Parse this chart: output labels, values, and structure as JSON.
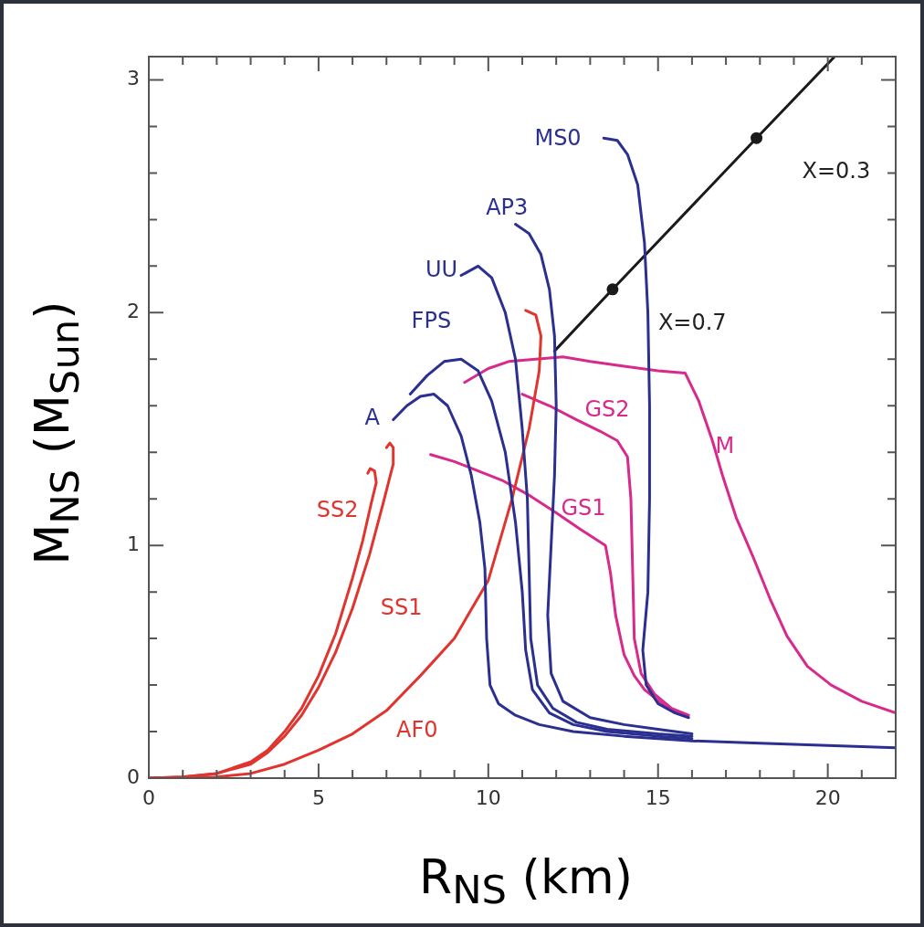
{
  "chart_data": {
    "type": "line",
    "xlabel": "R$_{NS}$ (km)",
    "ylabel": "M$_{NS}$ (M$_{Sun}$)",
    "xlim": [
      0,
      22
    ],
    "ylim": [
      0,
      3.1
    ],
    "xticks": [
      0,
      {
        "value": 1,
        "label": null
      },
      {
        "value": 2,
        "label": null
      },
      {
        "value": 3,
        "label": null
      },
      {
        "value": 4,
        "label": null
      },
      5,
      {
        "value": 6,
        "label": null
      },
      {
        "value": 7,
        "label": null
      },
      {
        "value": 8,
        "label": null
      },
      {
        "value": 9,
        "label": null
      },
      10,
      {
        "value": 11,
        "label": null
      },
      {
        "value": 12,
        "label": null
      },
      {
        "value": 13,
        "label": null
      },
      {
        "value": 14,
        "label": null
      },
      15,
      {
        "value": 16,
        "label": null
      },
      {
        "value": 17,
        "label": null
      },
      {
        "value": 18,
        "label": null
      },
      {
        "value": 19,
        "label": null
      },
      20,
      {
        "value": 21,
        "label": null
      }
    ],
    "yticks": [
      0,
      {
        "value": 0.2,
        "label": null
      },
      {
        "value": 0.4,
        "label": null
      },
      {
        "value": 0.6,
        "label": null
      },
      {
        "value": 0.8,
        "label": null
      },
      1,
      {
        "value": 1.2,
        "label": null
      },
      {
        "value": 1.4,
        "label": null
      },
      {
        "value": 1.6,
        "label": null
      },
      {
        "value": 1.8,
        "label": null
      },
      2,
      {
        "value": 2.2,
        "label": null
      },
      {
        "value": 2.4,
        "label": null
      },
      {
        "value": 2.6,
        "label": null
      },
      {
        "value": 2.8,
        "label": null
      },
      3
    ],
    "grid": false,
    "legend": false,
    "marker": "none",
    "line_style": "solid",
    "annotations": [
      {
        "text": "X=0.3",
        "x": 17.9,
        "y": 2.75
      },
      {
        "text": "X=0.7",
        "x": 13.66,
        "y": 2.1
      }
    ],
    "series": [
      {
        "name": "A",
        "color": "#2b3090",
        "x": [
          7.2,
          7.6,
          8.0,
          8.4,
          8.8,
          9.2,
          9.5,
          9.75,
          9.9,
          9.95,
          10.05,
          10.3,
          10.8,
          11.5,
          12.5,
          14,
          16,
          18,
          20,
          22
        ],
        "values": [
          1.54,
          1.6,
          1.64,
          1.65,
          1.6,
          1.47,
          1.3,
          1.1,
          0.9,
          0.6,
          0.4,
          0.32,
          0.27,
          0.23,
          0.2,
          0.18,
          0.16,
          0.15,
          0.14,
          0.13
        ]
      },
      {
        "name": "FPS",
        "color": "#2b3090",
        "x": [
          7.7,
          8.2,
          8.7,
          9.2,
          9.7,
          10.1,
          10.5,
          10.8,
          11.0,
          11.1,
          11.3,
          11.8,
          12.5,
          13.5,
          15,
          16
        ],
        "values": [
          1.65,
          1.73,
          1.79,
          1.8,
          1.75,
          1.62,
          1.4,
          1.1,
          0.8,
          0.55,
          0.38,
          0.28,
          0.23,
          0.2,
          0.18,
          0.17
        ]
      },
      {
        "name": "UU",
        "color": "#2b3090",
        "x": [
          9.2,
          9.7,
          10.1,
          10.5,
          10.8,
          11.0,
          11.15,
          11.2,
          11.25,
          11.45,
          11.9,
          12.6,
          13.5,
          15,
          16
        ],
        "values": [
          2.16,
          2.2,
          2.15,
          2.0,
          1.8,
          1.5,
          1.2,
          0.9,
          0.6,
          0.4,
          0.3,
          0.24,
          0.21,
          0.19,
          0.18
        ]
      },
      {
        "name": "AP3",
        "color": "#2b3090",
        "x": [
          10.8,
          11.2,
          11.55,
          11.8,
          11.95,
          12.0,
          11.95,
          11.85,
          11.75,
          11.85,
          12.2,
          13,
          14,
          15,
          16
        ],
        "values": [
          2.38,
          2.34,
          2.25,
          2.1,
          1.9,
          1.6,
          1.3,
          1.0,
          0.7,
          0.45,
          0.33,
          0.26,
          0.23,
          0.21,
          0.19
        ]
      },
      {
        "name": "MS0",
        "color": "#2b3090",
        "x": [
          13.4,
          13.8,
          14.1,
          14.4,
          14.6,
          14.7,
          14.75,
          14.75,
          14.7,
          14.55,
          14.65,
          15.0,
          15.5,
          15.9
        ],
        "values": [
          2.75,
          2.74,
          2.68,
          2.55,
          2.3,
          2.0,
          1.6,
          1.2,
          0.8,
          0.55,
          0.4,
          0.32,
          0.28,
          0.26
        ]
      },
      {
        "name": "SS2",
        "color": "#e0352f",
        "x": [
          0,
          1,
          2,
          3,
          3.5,
          4,
          4.5,
          5,
          5.5,
          6,
          6.3,
          6.55,
          6.7,
          6.65,
          6.52,
          6.45
        ],
        "values": [
          0,
          0.005,
          0.02,
          0.07,
          0.12,
          0.2,
          0.3,
          0.44,
          0.62,
          0.86,
          1.02,
          1.18,
          1.27,
          1.32,
          1.33,
          1.31
        ]
      },
      {
        "name": "SS1",
        "color": "#e0352f",
        "x": [
          0,
          1,
          2,
          3,
          3.5,
          4,
          4.5,
          5,
          5.5,
          6,
          6.5,
          6.9,
          7.2,
          7.2,
          7.1,
          7.0
        ],
        "values": [
          0,
          0.005,
          0.02,
          0.06,
          0.11,
          0.18,
          0.27,
          0.39,
          0.54,
          0.73,
          0.96,
          1.18,
          1.35,
          1.42,
          1.44,
          1.42
        ]
      },
      {
        "name": "AF0",
        "color": "#e0352f",
        "x": [
          0,
          2,
          3,
          4,
          5,
          6,
          7,
          8,
          9,
          10,
          10.7,
          11.2,
          11.5,
          11.55,
          11.4,
          11.1
        ],
        "values": [
          0,
          0.005,
          0.02,
          0.06,
          0.12,
          0.19,
          0.29,
          0.44,
          0.6,
          0.85,
          1.2,
          1.5,
          1.75,
          1.9,
          1.99,
          2.01
        ]
      },
      {
        "name": "GS1",
        "color": "#d82a8c",
        "x": [
          8.3,
          9.0,
          9.7,
          10.4,
          11.15,
          12.0,
          12.7,
          13.45,
          13.6,
          13.75,
          14.0,
          14.3,
          14.6,
          15.2,
          15.8
        ],
        "values": [
          1.39,
          1.36,
          1.32,
          1.28,
          1.22,
          1.14,
          1.07,
          1.0,
          0.88,
          0.7,
          0.53,
          0.44,
          0.38,
          0.31,
          0.27
        ]
      },
      {
        "name": "GS2",
        "color": "#d82a8c",
        "x": [
          11.0,
          11.8,
          12.6,
          13.3,
          13.8,
          14.1,
          14.2,
          14.25,
          14.3,
          14.5,
          14.9,
          15.4,
          15.9
        ],
        "values": [
          1.65,
          1.6,
          1.54,
          1.49,
          1.45,
          1.38,
          1.2,
          0.9,
          0.6,
          0.45,
          0.36,
          0.3,
          0.27
        ]
      },
      {
        "name": "M",
        "color": "#d82a8c",
        "x": [
          9.3,
          10.0,
          10.6,
          11.4,
          12.2,
          13.0,
          14.0,
          15.0,
          15.8,
          16.2,
          16.6,
          16.9,
          17.3,
          17.8,
          18.3,
          18.8,
          19.4,
          20.1,
          21,
          22
        ],
        "values": [
          1.7,
          1.76,
          1.79,
          1.8,
          1.81,
          1.79,
          1.77,
          1.75,
          1.74,
          1.62,
          1.45,
          1.3,
          1.12,
          0.95,
          0.77,
          0.61,
          0.48,
          0.4,
          0.33,
          0.28
        ]
      },
      {
        "color": "#1a1a1a",
        "marker": "circle",
        "x": [
          11.95,
          13.66,
          17.9,
          20.2
        ],
        "values": [
          1.835,
          2.1,
          2.75,
          3.1
        ]
      }
    ]
  }
}
